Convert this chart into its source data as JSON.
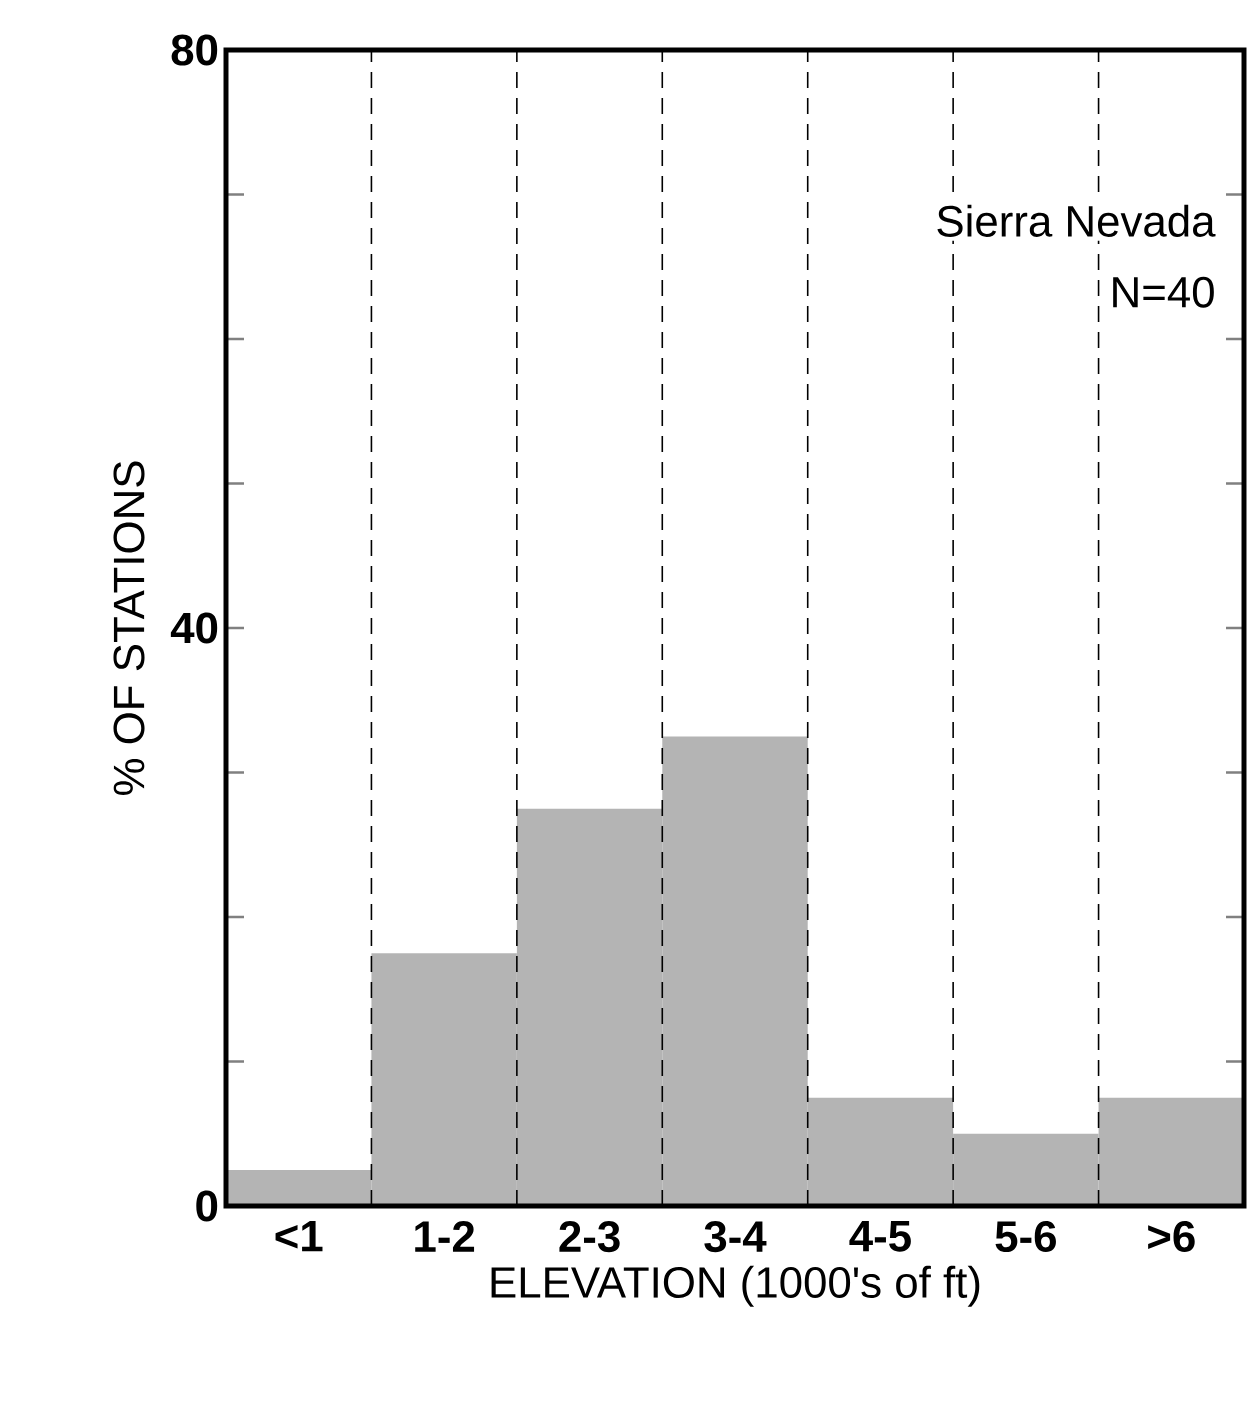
{
  "chart_data": {
    "type": "bar",
    "xlabel": "ELEVATION (1000's of ft)",
    "ylabel": "% OF STATIONS",
    "categories": [
      "<1",
      "1-2",
      "2-3",
      "3-4",
      "4-5",
      "5-6",
      ">6"
    ],
    "values": [
      2.5,
      17.5,
      27.5,
      32.5,
      7.5,
      5,
      7.5
    ],
    "color": "#b4b4b4",
    "ylim": [
      0,
      80
    ],
    "yticks": [
      0,
      {
        "value": 10,
        "label": null
      },
      {
        "value": 20,
        "label": null
      },
      {
        "value": 30,
        "label": null
      },
      40,
      {
        "value": 50,
        "label": null
      },
      {
        "value": 60,
        "label": null
      },
      {
        "value": 70,
        "label": null
      },
      80
    ],
    "grid": "x",
    "annotations": [
      "Sierra Nevada",
      "N=40"
    ]
  }
}
